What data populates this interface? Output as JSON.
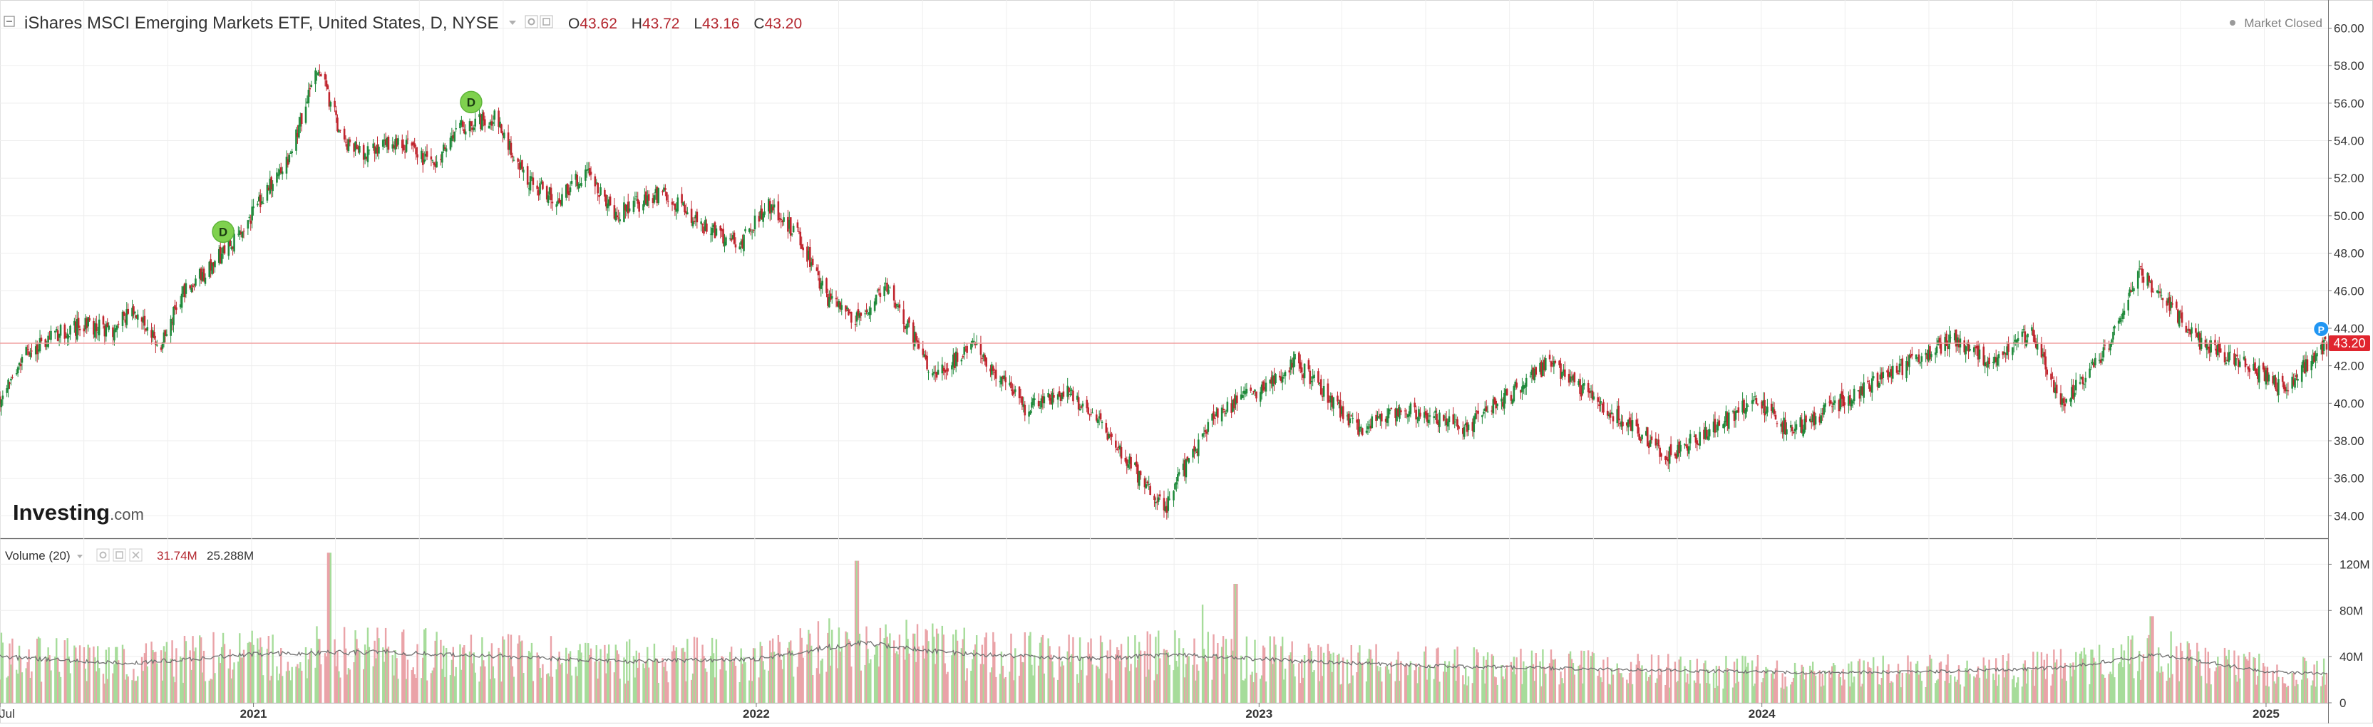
{
  "header": {
    "collapse_icon": "minus-square-icon",
    "title": "iShares MSCI Emerging Markets ETF, United States, D, NYSE",
    "dropdown_icon": "caret-down-icon",
    "settings_icon": "gear-icon",
    "square_icon": "square-icon",
    "ohlc": {
      "o_label": "O",
      "o": "43.62",
      "h_label": "H",
      "h": "43.72",
      "l_label": "L",
      "l": "43.16",
      "c_label": "C",
      "c": "43.20"
    },
    "market_status": "Market Closed",
    "status_dot_icon": "dot-icon"
  },
  "watermark": {
    "brand": "Investing",
    "suffix": ".com"
  },
  "volume_panel": {
    "label": "Volume (20)",
    "dropdown_icon": "caret-down-icon",
    "settings_icon": "gear-icon",
    "square_icon": "square-icon",
    "close_icon": "close-icon",
    "value_red": "31.74M",
    "value_ma": "25.288M"
  },
  "colors": {
    "up": "#1f8a3b",
    "down": "#c0252e",
    "vol_up": "#a6dc9a",
    "vol_down": "#eaa3a8",
    "price_line": "#f0a0a0",
    "price_badge": "#e0252e",
    "grid": "#eeeeee",
    "dividend_marker": "#7fd14e",
    "p_marker": "#2196f3"
  },
  "chart_data": [
    {
      "type": "candlestick",
      "title": "iShares MSCI Emerging Markets ETF, United States, D, NYSE",
      "x_range": [
        "2020-07-01",
        "2025-02-14"
      ],
      "ylim": [
        32.8,
        61.5
      ],
      "y_ticks": [
        "60.00",
        "58.00",
        "56.00",
        "54.00",
        "52.00",
        "50.00",
        "48.00",
        "46.00",
        "44.00",
        "42.00",
        "40.00",
        "38.00",
        "36.00",
        "34.00"
      ],
      "x_ticks": [
        {
          "label": "Jul",
          "date": "2020-07-01"
        },
        {
          "label": "2021",
          "date": "2021-01-01"
        },
        {
          "label": "2022",
          "date": "2022-01-01"
        },
        {
          "label": "2023",
          "date": "2023-01-01"
        },
        {
          "label": "2024",
          "date": "2024-01-01"
        },
        {
          "label": "2025",
          "date": "2025-01-01"
        }
      ],
      "last_price": "43.20",
      "grid": true,
      "close_series": [
        [
          "2020-07-01",
          40.2
        ],
        [
          "2020-07-20",
          42.6
        ],
        [
          "2020-08-10",
          43.7
        ],
        [
          "2020-09-01",
          44.2
        ],
        [
          "2020-09-20",
          43.9
        ],
        [
          "2020-10-05",
          44.9
        ],
        [
          "2020-10-25",
          43.0
        ],
        [
          "2020-11-10",
          45.8
        ],
        [
          "2020-12-01",
          47.3
        ],
        [
          "2020-12-20",
          48.8
        ],
        [
          "2021-01-08",
          51.1
        ],
        [
          "2021-01-25",
          52.8
        ],
        [
          "2021-02-17",
          58.0
        ],
        [
          "2021-03-08",
          53.8
        ],
        [
          "2021-03-25",
          53.3
        ],
        [
          "2021-04-15",
          54.1
        ],
        [
          "2021-05-12",
          52.6
        ],
        [
          "2021-06-01",
          54.8
        ],
        [
          "2021-06-25",
          55.2
        ],
        [
          "2021-07-20",
          51.8
        ],
        [
          "2021-08-10",
          50.8
        ],
        [
          "2021-08-30",
          52.4
        ],
        [
          "2021-09-20",
          50.1
        ],
        [
          "2021-10-10",
          50.7
        ],
        [
          "2021-10-25",
          51.2
        ],
        [
          "2021-11-20",
          49.6
        ],
        [
          "2021-12-20",
          48.5
        ],
        [
          "2022-01-10",
          50.6
        ],
        [
          "2022-02-01",
          48.9
        ],
        [
          "2022-02-24",
          45.3
        ],
        [
          "2022-03-15",
          44.6
        ],
        [
          "2022-04-05",
          46.2
        ],
        [
          "2022-05-10",
          41.5
        ],
        [
          "2022-06-08",
          43.0
        ],
        [
          "2022-07-15",
          39.8
        ],
        [
          "2022-08-15",
          40.6
        ],
        [
          "2022-09-05",
          39.2
        ],
        [
          "2022-10-24",
          34.3
        ],
        [
          "2022-11-10",
          36.8
        ],
        [
          "2022-12-01",
          39.5
        ],
        [
          "2023-01-10",
          41.0
        ],
        [
          "2023-01-26",
          42.3
        ],
        [
          "2023-03-15",
          38.5
        ],
        [
          "2023-04-15",
          39.8
        ],
        [
          "2023-05-30",
          38.6
        ],
        [
          "2023-07-30",
          42.1
        ],
        [
          "2023-10-25",
          37.2
        ],
        [
          "2023-12-28",
          40.2
        ],
        [
          "2024-01-22",
          38.5
        ],
        [
          "2024-03-15",
          40.8
        ],
        [
          "2024-05-20",
          43.5
        ],
        [
          "2024-06-15",
          42.2
        ],
        [
          "2024-07-15",
          43.9
        ],
        [
          "2024-08-05",
          39.9
        ],
        [
          "2024-09-05",
          42.6
        ],
        [
          "2024-10-01",
          47.1
        ],
        [
          "2024-11-15",
          43.2
        ],
        [
          "2024-12-20",
          42.0
        ],
        [
          "2025-01-13",
          40.8
        ],
        [
          "2025-02-14",
          43.2
        ]
      ],
      "markers": [
        {
          "label": "D",
          "date": "2020-12-10"
        },
        {
          "label": "D",
          "date": "2021-06-08"
        },
        {
          "label": "P",
          "date": "2025-02-10"
        }
      ]
    },
    {
      "type": "bar",
      "title": "Volume (20)",
      "ylim": [
        0,
        140
      ],
      "y_ticks": [
        "120M",
        "80M",
        "40M",
        "0"
      ],
      "unit": "M",
      "ma_period": 20,
      "avg_volume_series": [
        [
          "2020-07-01",
          40
        ],
        [
          "2020-10-01",
          34
        ],
        [
          "2021-01-01",
          42
        ],
        [
          "2021-04-01",
          44
        ],
        [
          "2021-07-01",
          40
        ],
        [
          "2021-10-01",
          36
        ],
        [
          "2022-01-01",
          38
        ],
        [
          "2022-03-15",
          52
        ],
        [
          "2022-06-01",
          42
        ],
        [
          "2022-09-01",
          38
        ],
        [
          "2022-11-01",
          42
        ],
        [
          "2023-02-01",
          36
        ],
        [
          "2023-05-01",
          32
        ],
        [
          "2023-08-01",
          30
        ],
        [
          "2023-11-01",
          28
        ],
        [
          "2024-02-01",
          26
        ],
        [
          "2024-05-01",
          27
        ],
        [
          "2024-08-01",
          30
        ],
        [
          "2024-10-15",
          42
        ],
        [
          "2025-01-01",
          27
        ],
        [
          "2025-02-14",
          25
        ]
      ],
      "spikes": [
        [
          "2021-02-25",
          130
        ],
        [
          "2022-03-15",
          123
        ],
        [
          "2022-11-20",
          85
        ],
        [
          "2022-12-15",
          103
        ],
        [
          "2024-10-10",
          75
        ]
      ]
    }
  ]
}
